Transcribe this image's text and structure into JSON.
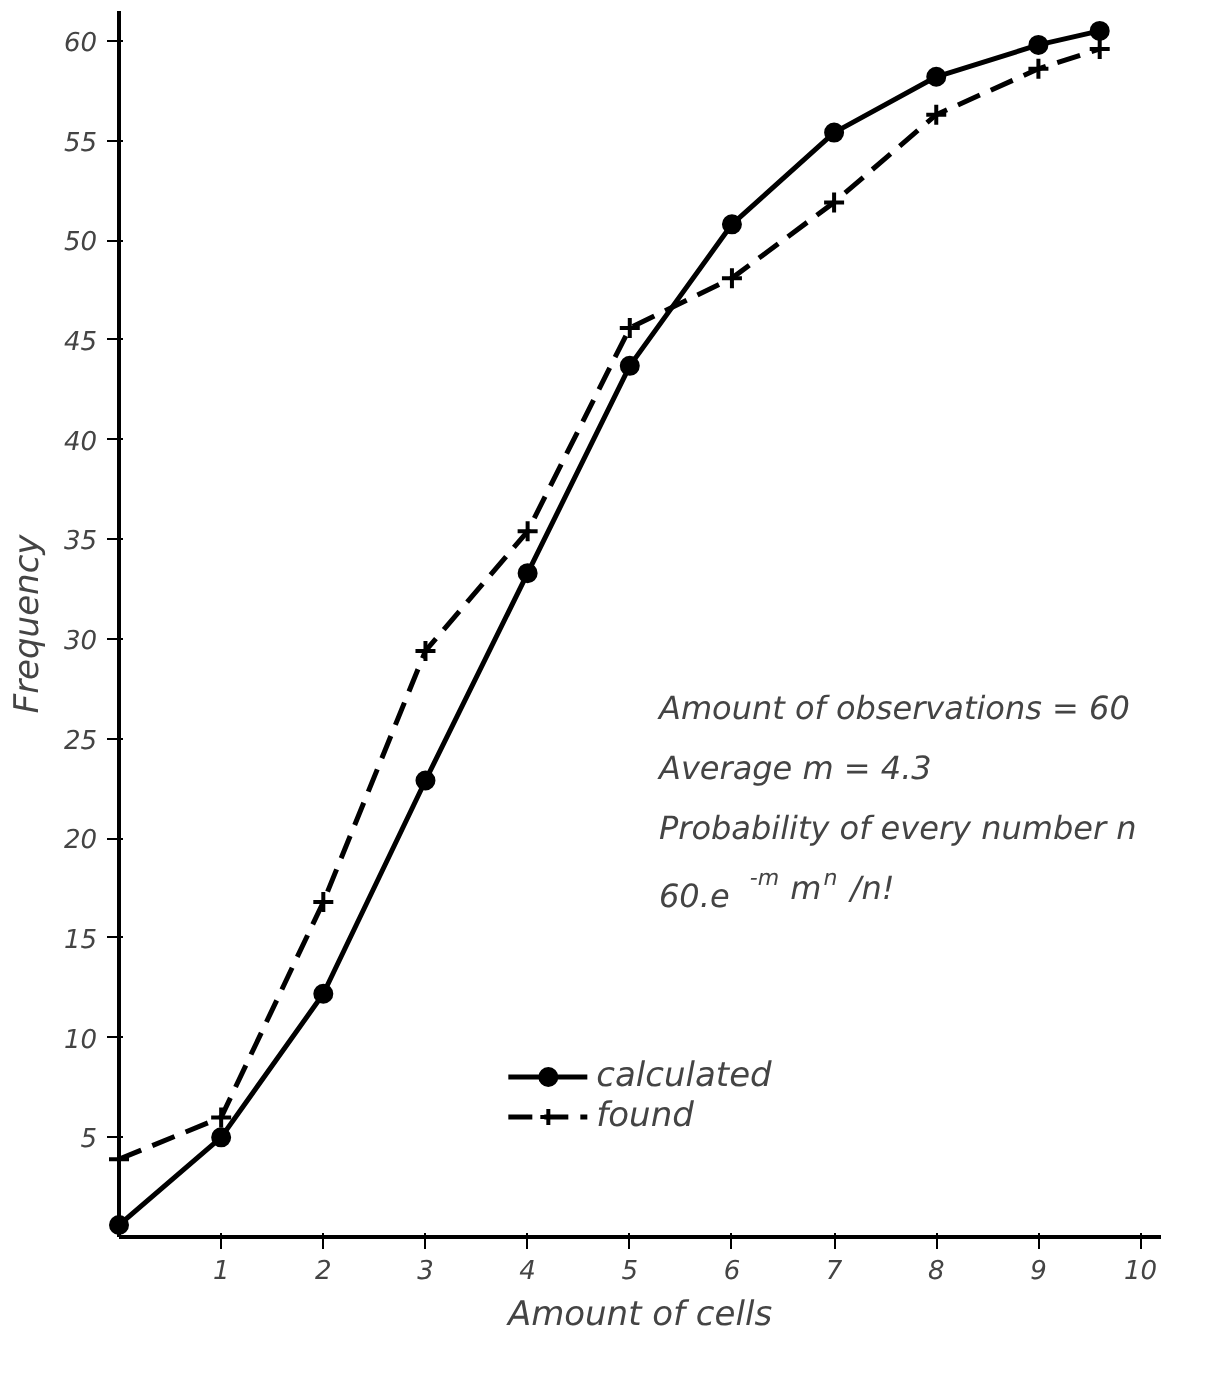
{
  "chart_data": {
    "type": "line",
    "xlabel": "Amount of cells",
    "ylabel": "Frequency",
    "xlim": [
      0,
      10.2
    ],
    "ylim": [
      0,
      61.5
    ],
    "xticks": [
      1,
      2,
      3,
      4,
      5,
      6,
      7,
      8,
      9,
      10
    ],
    "yticks": [
      5,
      10,
      15,
      20,
      25,
      30,
      35,
      40,
      45,
      50,
      55,
      60
    ],
    "grid": false,
    "legend": "bottom",
    "annotations": [
      "Amount of observations = 60",
      "Average m = 4.3",
      "Probability of every number n",
      "60.e$^{-m}$m$^{n}$/n!"
    ],
    "series": [
      {
        "name": "calculated",
        "color": "#000000",
        "marker": "circle",
        "line_style": "solid",
        "x": [
          0,
          1,
          2,
          3,
          4,
          5,
          6,
          7,
          8,
          9,
          9.6
        ],
        "values": [
          0.6,
          5.0,
          12.2,
          22.9,
          33.3,
          43.7,
          50.8,
          55.4,
          58.2,
          59.8,
          60.5
        ]
      },
      {
        "name": "found",
        "color": "#000000",
        "marker": "cross",
        "line_style": "dashed",
        "x": [
          0,
          1,
          2,
          3,
          4,
          5,
          6,
          7,
          8,
          9,
          9.6
        ],
        "values": [
          3.9,
          6.0,
          16.8,
          29.4,
          35.4,
          45.6,
          48.1,
          51.9,
          56.3,
          58.6,
          59.6
        ]
      }
    ]
  }
}
